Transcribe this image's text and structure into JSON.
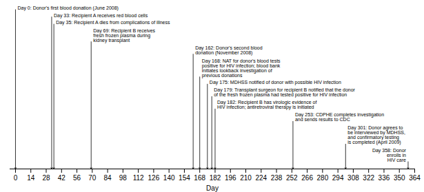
{
  "chart_data": {
    "type": "timeline",
    "xlabel": "Day",
    "xlim": [
      -5,
      364
    ],
    "xticks": [
      0,
      14,
      28,
      42,
      56,
      70,
      84,
      98,
      112,
      126,
      140,
      154,
      168,
      182,
      196,
      210,
      224,
      238,
      252,
      266,
      280,
      294,
      308,
      322,
      336,
      350,
      364
    ],
    "x": [
      0,
      33,
      35,
      69,
      162,
      168,
      175,
      179,
      182,
      253,
      301,
      358
    ],
    "annotations": [
      "Day 0: Donor's first blood donation (June 2008)",
      "Day 33: Recipient A receives red blood cells",
      "Day 35: Recipient A dies from complications of illness",
      "Day 69: Recipient B receives\nfresh frozen plasma during\nkidney transplant",
      "Day 162: Donor's second blood\ndonation (November 2008)",
      "Day 168: NAT for donor's blood tests\npositive for HIV infection; blood bank\ninitiates lookback investigation of\nprevious donations",
      "Day 175: MDHSS notified of donor with possible HIV infection",
      "Day 179: Transplant surgeon for recipient B notified that the donor\nof the fresh frozen plasma had tested positive for HIV infection",
      "Day 182: Recipient B has virologic evidence of\nHIV infection; antiretroviral therapy is initiated",
      "Day 253: CDPHE completes investigation\nand sends results to CDC",
      "Day 301: Donor agrees to\nbe interviewed by MDHSS,\nand confirmatory testing\nis completed (April 2009)",
      "Day 358: Donor\nenrolls in\nHIV care"
    ],
    "tick_labels": "x"
  }
}
